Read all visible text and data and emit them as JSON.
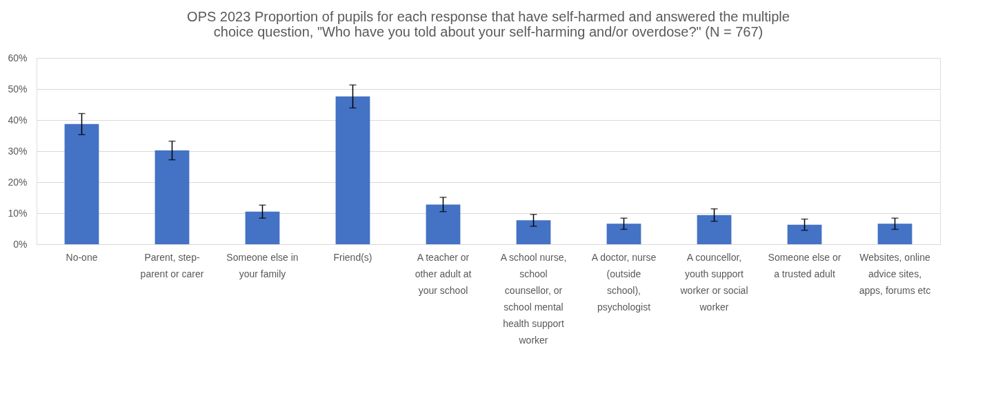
{
  "chart_data": {
    "type": "bar",
    "title": "OPS 2023 Proportion of pupils for each response that have self-harmed and answered the multiple choice question, \"Who have you told about your self-harming and/or overdose?\" (N = 767)",
    "categories": [
      "No-one",
      "Parent, step-parent or carer",
      "Someone else in your family",
      "Friend(s)",
      "A teacher or other adult at your school",
      "A school nurse, school counsellor, or school mental health support worker",
      "A doctor, nurse (outside school), psychologist",
      "A councellor, youth support worker or social worker",
      "Someone else or a trusted adult",
      "Websites, online advice sites, apps, forums etc"
    ],
    "values": [
      38.7,
      30.2,
      10.5,
      47.6,
      12.8,
      7.7,
      6.6,
      9.4,
      6.3,
      6.6
    ],
    "errors": [
      3.4,
      3.0,
      2.1,
      3.7,
      2.3,
      1.9,
      1.8,
      2.0,
      1.8,
      1.8
    ],
    "color": "#4472c4",
    "ylim": [
      0,
      60
    ],
    "yticks": [
      {
        "value": 0,
        "label": "0%"
      },
      {
        "value": 10,
        "label": "10%"
      },
      {
        "value": 20,
        "label": "20%"
      },
      {
        "value": 30,
        "label": "30%"
      },
      {
        "value": 40,
        "label": "40%"
      },
      {
        "value": 50,
        "label": "50%"
      },
      {
        "value": 60,
        "label": "60%"
      }
    ],
    "grid": "y"
  }
}
